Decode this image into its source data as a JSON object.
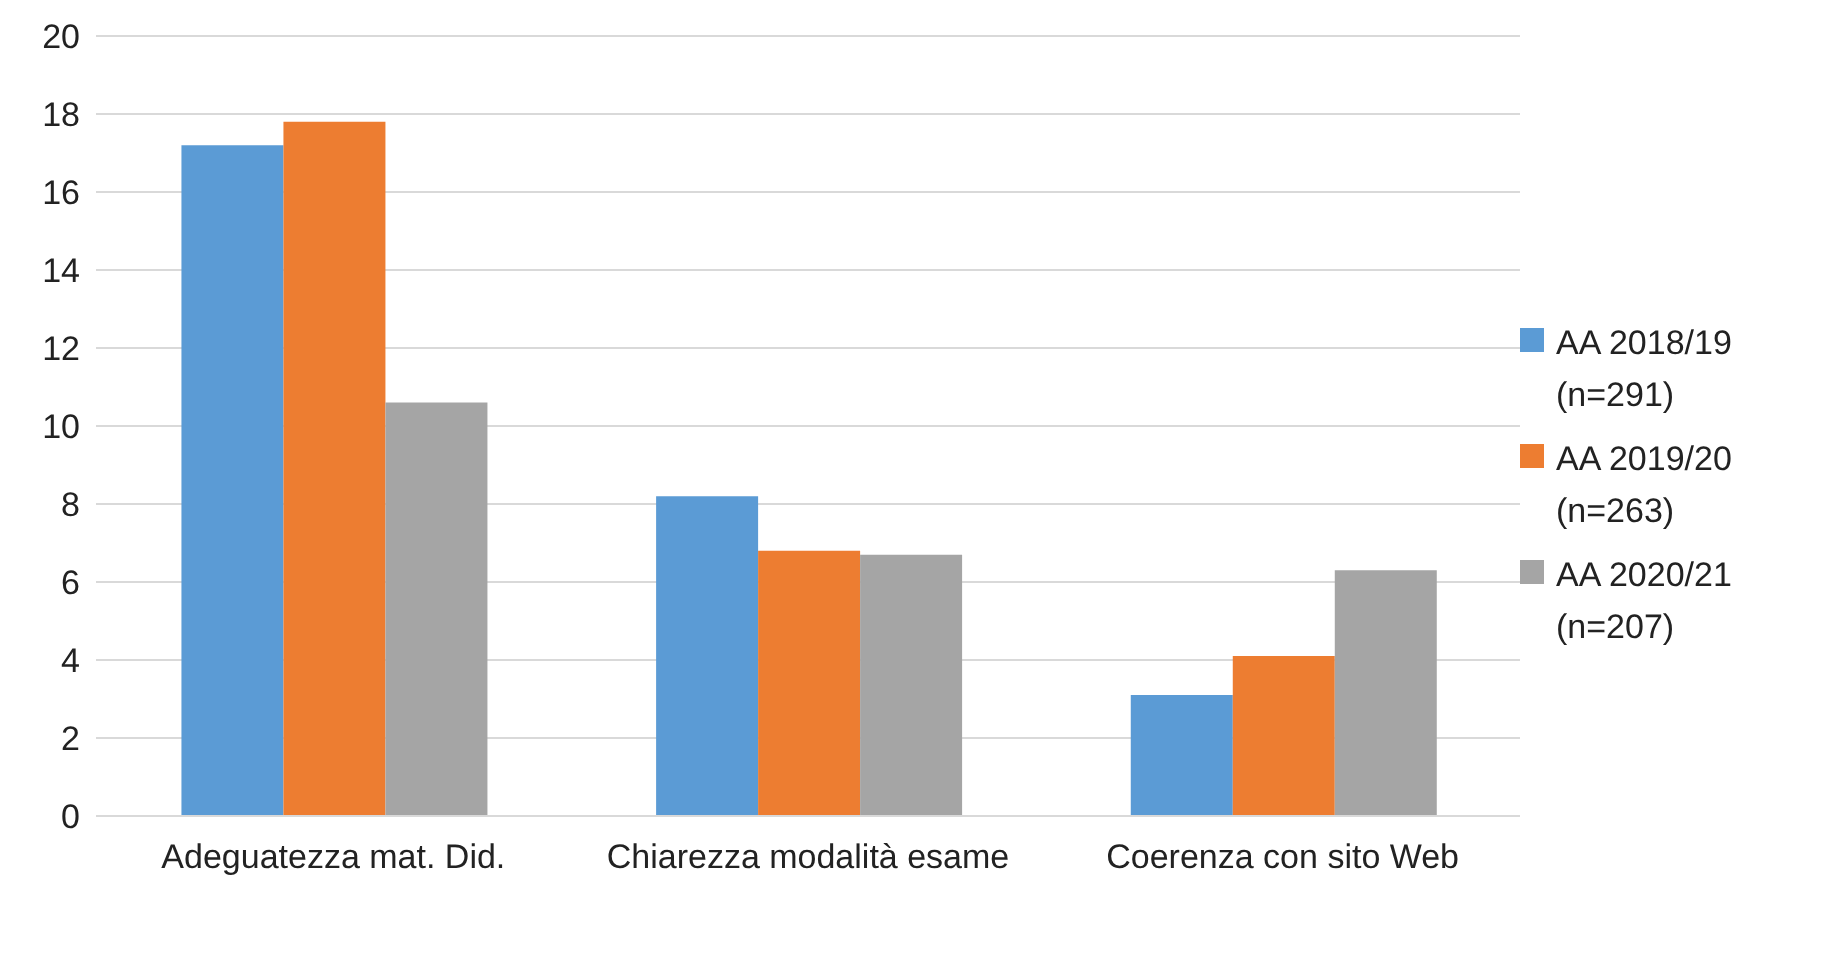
{
  "chart_data": {
    "type": "bar",
    "categories": [
      "Adeguatezza mat. Did.",
      "Chiarezza modalità esame",
      "Coerenza con sito Web"
    ],
    "series": [
      {
        "name": "AA 2018/19 (n=291)",
        "color": "#5b9bd5",
        "values": [
          17.2,
          8.2,
          3.1
        ]
      },
      {
        "name": "AA 2019/20 (n=263)",
        "color": "#ed7d31",
        "values": [
          17.8,
          6.8,
          4.1
        ]
      },
      {
        "name": "AA 2020/21 (n=207)",
        "color": "#a5a5a5",
        "values": [
          10.6,
          6.7,
          6.3
        ]
      }
    ],
    "ylim": [
      0,
      20
    ],
    "yticks": [
      0,
      2,
      4,
      6,
      8,
      10,
      12,
      14,
      16,
      18,
      20
    ],
    "grid": "y",
    "legend": "right"
  }
}
